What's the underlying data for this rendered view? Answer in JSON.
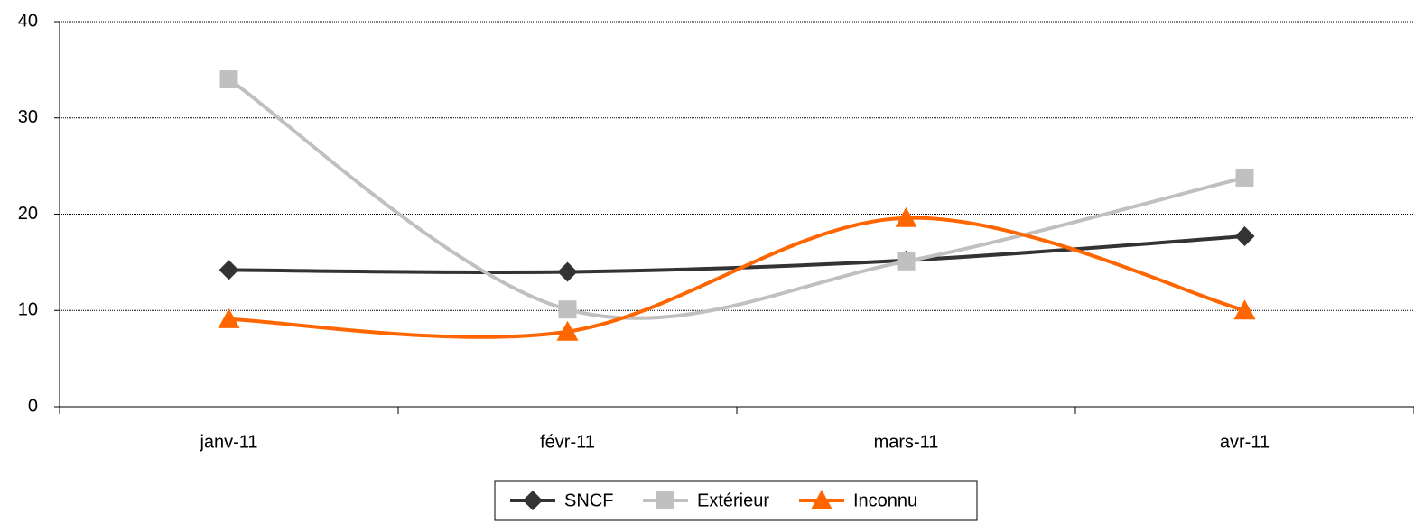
{
  "chart_data": {
    "type": "line",
    "categories": [
      "janv-11",
      "févr-11",
      "mars-11",
      "avr-11"
    ],
    "series": [
      {
        "name": "SNCF",
        "color": "#333333",
        "marker": "diamond",
        "values": [
          14.2,
          14.0,
          15.2,
          17.7
        ]
      },
      {
        "name": "Extérieur",
        "color": "#c0c0c0",
        "marker": "square",
        "values": [
          34.0,
          10.1,
          15.1,
          23.8
        ]
      },
      {
        "name": "Inconnu",
        "color": "#ff6600",
        "marker": "triangle",
        "values": [
          9.1,
          7.8,
          19.6,
          10.0
        ]
      }
    ],
    "ylim": [
      0,
      40
    ],
    "yticks": [
      0,
      10,
      20,
      30,
      40
    ],
    "grid": true,
    "smooth": true,
    "legend": "bottom"
  }
}
